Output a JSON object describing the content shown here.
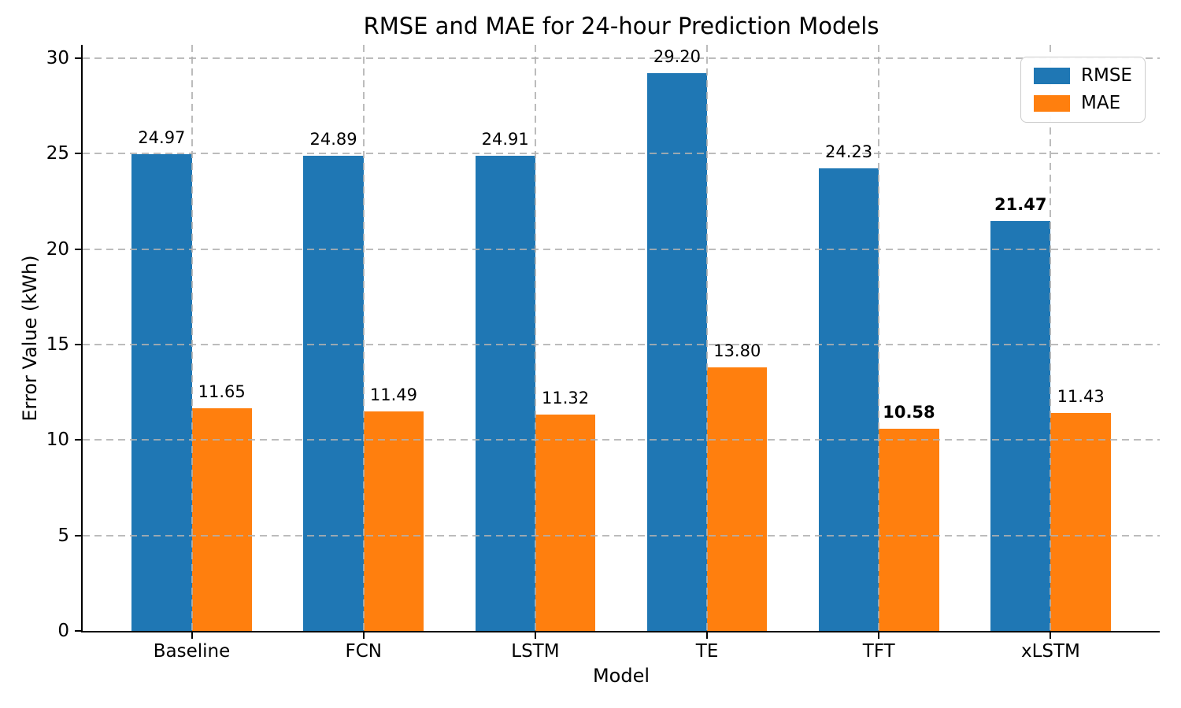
{
  "chart_data": {
    "type": "bar",
    "title": "RMSE and MAE for 24-hour Prediction Models",
    "xlabel": "Model",
    "ylabel": "Error Value (kWh)",
    "categories": [
      "Baseline",
      "FCN",
      "LSTM",
      "TE",
      "TFT",
      "xLSTM"
    ],
    "series": [
      {
        "name": "RMSE",
        "color": "#1f77b4",
        "values": [
          24.97,
          24.89,
          24.91,
          29.2,
          24.23,
          21.47
        ],
        "bold": [
          false,
          false,
          false,
          false,
          false,
          true
        ]
      },
      {
        "name": "MAE",
        "color": "#ff7f0e",
        "values": [
          11.65,
          11.49,
          11.32,
          13.8,
          10.58,
          11.43
        ],
        "bold": [
          false,
          false,
          false,
          false,
          true,
          false
        ]
      }
    ],
    "yticks": [
      0,
      5,
      10,
      15,
      20,
      25,
      30
    ],
    "ylim": [
      0,
      30.7
    ],
    "bar_label_decimals": 2,
    "grid": true,
    "grid_axes": "both",
    "grid_style": "dashed",
    "grid_above_bars": true,
    "legend_position": "upper right"
  }
}
